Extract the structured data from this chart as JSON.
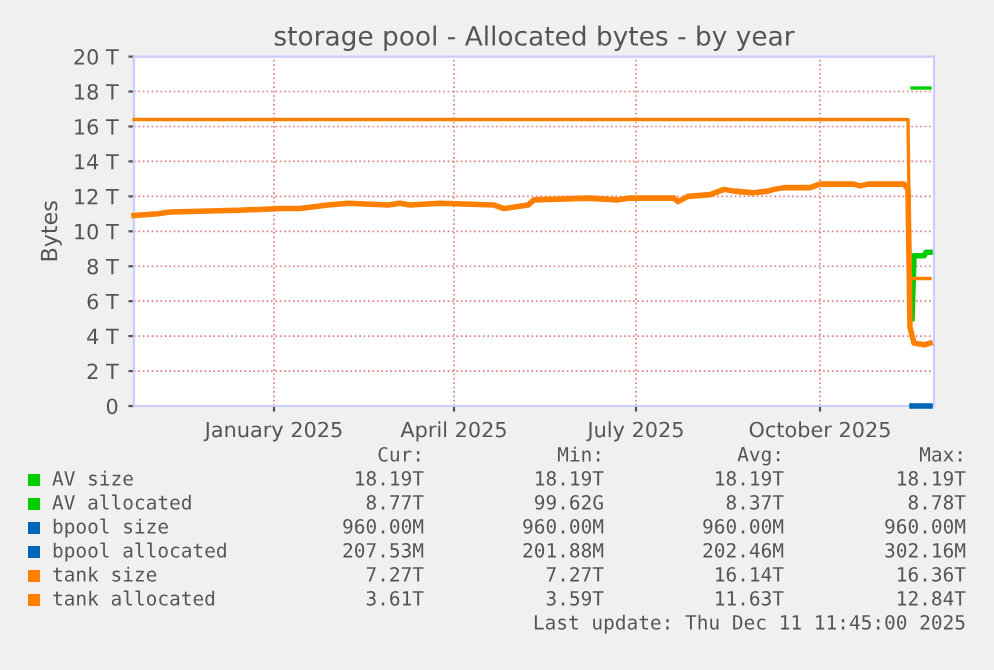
{
  "chart_data": {
    "type": "line",
    "title": "storage pool - Allocated bytes - by year",
    "ylabel": "Bytes",
    "xlim": [
      "2024-11-07",
      "2025-12-12"
    ],
    "xticks": [
      {
        "value": "2025-01-16",
        "label": "January 2025"
      },
      {
        "value": "2025-04-16",
        "label": "April 2025"
      },
      {
        "value": "2025-07-16",
        "label": "July 2025"
      },
      {
        "value": "2025-10-16",
        "label": "October 2025"
      }
    ],
    "ylim": [
      0,
      20
    ],
    "yticks": [
      {
        "value": 0,
        "label": "0"
      },
      {
        "value": 2,
        "label": "2 T"
      },
      {
        "value": 4,
        "label": "4 T"
      },
      {
        "value": 6,
        "label": "6 T"
      },
      {
        "value": 8,
        "label": "8 T"
      },
      {
        "value": 10,
        "label": "10 T"
      },
      {
        "value": 12,
        "label": "12 T"
      },
      {
        "value": 14,
        "label": "14 T"
      },
      {
        "value": 16,
        "label": "16 T"
      },
      {
        "value": 18,
        "label": "18 T"
      },
      {
        "value": 20,
        "label": "20 T"
      }
    ],
    "grid": true,
    "legend": "bottom",
    "marker": "none",
    "line_style": "solid",
    "series": [
      {
        "name": "AV size",
        "color": "#00cc00",
        "x": [
          "2025-12-01",
          "2025-12-10"
        ],
        "values": [
          18.2,
          18.2
        ]
      },
      {
        "name": "AV allocated",
        "color": "#00cc00",
        "x": [
          "2025-12-01",
          "2025-12-02",
          "2025-12-07",
          "2025-12-08",
          "2025-12-10"
        ],
        "values": [
          5.0,
          8.6,
          8.6,
          8.8,
          8.8
        ]
      },
      {
        "name": "bpool size",
        "color": "#0066b3"
      },
      {
        "name": "bpool allocated",
        "color": "#0066b3",
        "x": [
          "2025-12-01",
          "2025-12-10"
        ],
        "values": [
          0,
          0
        ]
      },
      {
        "name": "tank size",
        "color": "#ff8000",
        "x": [
          "2024-11-07",
          "2025-11-29",
          "2025-11-30",
          "2025-12-10"
        ],
        "values": [
          16.4,
          16.4,
          7.3,
          7.3
        ]
      },
      {
        "name": "tank allocated",
        "color": "#ff8000",
        "x": [
          "2024-11-07",
          "2024-11-19",
          "2024-11-25",
          "2024-12-29",
          "2025-01-19",
          "2025-01-29",
          "2025-02-12",
          "2025-02-22",
          "2025-03-14",
          "2025-03-20",
          "2025-03-25",
          "2025-04-09",
          "2025-05-06",
          "2025-05-11",
          "2025-05-23",
          "2025-05-26",
          "2025-06-22",
          "2025-07-07",
          "2025-07-13",
          "2025-08-04",
          "2025-08-06",
          "2025-08-11",
          "2025-08-22",
          "2025-08-29",
          "2025-09-03",
          "2025-09-13",
          "2025-09-20",
          "2025-09-23",
          "2025-09-28",
          "2025-10-11",
          "2025-10-16",
          "2025-11-02",
          "2025-11-05",
          "2025-11-09",
          "2025-11-27",
          "2025-11-29",
          "2025-11-30",
          "2025-12-02",
          "2025-12-07",
          "2025-12-10"
        ],
        "values": [
          10.9,
          11.0,
          11.1,
          11.2,
          11.3,
          11.3,
          11.5,
          11.6,
          11.5,
          11.6,
          11.5,
          11.6,
          11.5,
          11.3,
          11.5,
          11.8,
          11.9,
          11.8,
          11.9,
          11.9,
          11.7,
          12.0,
          12.1,
          12.4,
          12.3,
          12.2,
          12.3,
          12.4,
          12.5,
          12.5,
          12.7,
          12.7,
          12.6,
          12.7,
          12.7,
          12.4,
          4.5,
          3.6,
          3.5,
          3.6
        ]
      }
    ],
    "annotations": [
      "Cur:",
      "Min:",
      "Avg:",
      "Max:",
      "18.19T",
      "18.19T",
      "18.19T",
      "18.19T",
      "8.77T",
      "99.62G",
      "8.37T",
      "8.78T",
      "960.00M",
      "960.00M",
      "960.00M",
      "960.00M",
      "207.53M",
      "201.88M",
      "202.46M",
      "302.16M",
      "7.27T",
      "7.27T",
      "16.14T",
      "16.36T",
      "3.61T",
      "3.59T",
      "11.63T",
      "12.84T",
      "Last update: Thu Dec 11 11:45:00 2025"
    ]
  }
}
